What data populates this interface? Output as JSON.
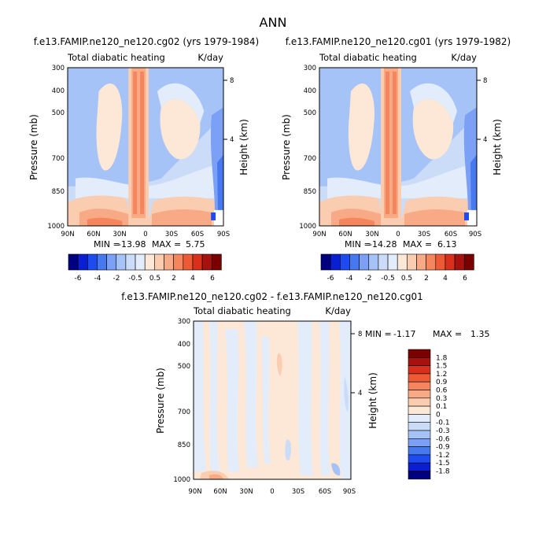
{
  "figure_title": "ANN",
  "chart_data": [
    {
      "type": "heatmap",
      "title": "f.e13.FAMIP.ne120_ne120.cg02 (yrs 1979-1984)",
      "subtitle_left": "Total diabatic heating",
      "subtitle_right": "K/day",
      "xlabel": "",
      "ylabel": "Pressure (mb)",
      "ylabel_right": "Height (km)",
      "x_ticks": [
        "90N",
        "60N",
        "30N",
        "0",
        "30S",
        "60S",
        "90S"
      ],
      "y_ticks": [
        "300",
        "400",
        "500",
        "700",
        "850",
        "1000"
      ],
      "y_ticks_right": [
        "8",
        "4"
      ],
      "min_label": "MIN =",
      "min_value": "-13.98",
      "max_label": "MAX =",
      "max_value": "5.75",
      "colorbar_labels": [
        "-6",
        "-4",
        "-2",
        "-0.5",
        "0.5",
        "2",
        "4",
        "6"
      ]
    },
    {
      "type": "heatmap",
      "title": "f.e13.FAMIP.ne120_ne120.cg01 (yrs 1979-1982)",
      "subtitle_left": "Total diabatic heating",
      "subtitle_right": "K/day",
      "xlabel": "",
      "ylabel": "Pressure (mb)",
      "ylabel_right": "Height (km)",
      "x_ticks": [
        "90N",
        "60N",
        "30N",
        "0",
        "30S",
        "60S",
        "90S"
      ],
      "y_ticks": [
        "300",
        "400",
        "500",
        "700",
        "850",
        "1000"
      ],
      "y_ticks_right": [
        "8",
        "4"
      ],
      "min_label": "MIN =",
      "min_value": "-14.28",
      "max_label": "MAX =",
      "max_value": "6.13",
      "colorbar_labels": [
        "-6",
        "-4",
        "-2",
        "-0.5",
        "0.5",
        "2",
        "4",
        "6"
      ]
    },
    {
      "type": "heatmap",
      "title": "f.e13.FAMIP.ne120_ne120.cg02 - f.e13.FAMIP.ne120_ne120.cg01",
      "subtitle_left": "Total diabatic heating",
      "subtitle_right": "K/day",
      "xlabel": "",
      "ylabel": "Pressure (mb)",
      "ylabel_right": "Height (km)",
      "x_ticks": [
        "90N",
        "60N",
        "30N",
        "0",
        "30S",
        "60S",
        "90S"
      ],
      "y_ticks": [
        "300",
        "400",
        "500",
        "700",
        "850",
        "1000"
      ],
      "y_ticks_right": [
        "8",
        "4"
      ],
      "min_label": "MIN =",
      "min_value": "-1.17",
      "max_label": "MAX =",
      "max_value": "1.35",
      "colorbar_labels": [
        "1.8",
        "1.5",
        "1.2",
        "0.9",
        "0.6",
        "0.3",
        "0.1",
        "0",
        "-0.1",
        "-0.3",
        "-0.6",
        "-0.9",
        "-1.2",
        "-1.5",
        "-1.8"
      ]
    }
  ],
  "palette": [
    "#000080",
    "#0a1ed2",
    "#1e4bf0",
    "#4678f0",
    "#7ba0f5",
    "#a6c3f7",
    "#cbdcf8",
    "#e2ecfa",
    "#fde8d8",
    "#fbcdb0",
    "#f8aa86",
    "#f5855c",
    "#ee5a36",
    "#d8301a",
    "#a8120e",
    "#7a0000"
  ]
}
